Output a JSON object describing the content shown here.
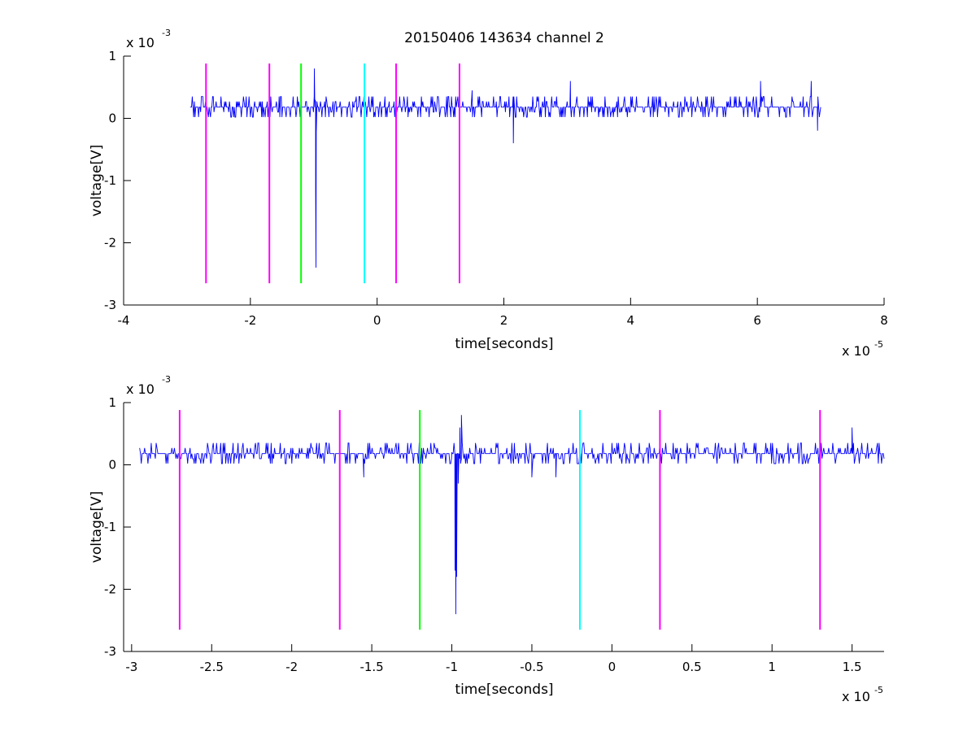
{
  "chart_data": [
    {
      "type": "line",
      "title": "20150406 143634 channel 2",
      "xlabel": "time[seconds]",
      "ylabel": "voltage[V]",
      "x_scale_label": "x 10",
      "x_scale_exponent": "-5",
      "y_scale_label": "x 10",
      "y_scale_exponent": "-3",
      "xlim": [
        -4,
        8
      ],
      "ylim": [
        -3,
        1
      ],
      "x_ticks": [
        -4,
        -2,
        0,
        2,
        4,
        6,
        8
      ],
      "x_tick_labels": [
        "-4",
        "-2",
        "0",
        "2",
        "4",
        "6",
        "8"
      ],
      "y_ticks": [
        -3,
        -2,
        -1,
        0,
        1
      ],
      "y_tick_labels": [
        "-3",
        "-2",
        "-1",
        "0",
        "1"
      ],
      "grid": false,
      "series": [
        {
          "color": "#0000ff",
          "x_start": -2.95,
          "x_end": 7.0,
          "baseline": 0.18,
          "noise_levels": [
            0.35,
            0.27,
            0.18,
            0.1,
            0.02
          ],
          "spikes": [
            {
              "x": -0.99,
              "y": 0.8
            },
            {
              "x": -0.98,
              "y": 0.3
            },
            {
              "x": -0.97,
              "y": -1.2
            },
            {
              "x": -0.965,
              "y": -2.4
            },
            {
              "x": -0.96,
              "y": -0.2
            },
            {
              "x": 1.5,
              "y": 0.45
            },
            {
              "x": 2.15,
              "y": -0.4
            },
            {
              "x": 3.05,
              "y": 0.6
            },
            {
              "x": 6.05,
              "y": 0.6
            },
            {
              "x": 6.85,
              "y": 0.6
            },
            {
              "x": 6.95,
              "y": -0.2
            }
          ]
        }
      ],
      "markers": [
        {
          "x": -2.7,
          "color": "#ff00ff"
        },
        {
          "x": -1.7,
          "color": "#ff00ff"
        },
        {
          "x": -1.2,
          "color": "#00ff00"
        },
        {
          "x": -0.2,
          "color": "#00ffff"
        },
        {
          "x": 0.3,
          "color": "#ff00ff"
        },
        {
          "x": 1.3,
          "color": "#ff00ff"
        }
      ],
      "marker_y_range": [
        -2.65,
        0.88
      ]
    },
    {
      "type": "line",
      "title": "",
      "xlabel": "time[seconds]",
      "ylabel": "voltage[V]",
      "x_scale_label": "x 10",
      "x_scale_exponent": "-5",
      "y_scale_label": "x 10",
      "y_scale_exponent": "-3",
      "xlim": [
        -3.05,
        1.7
      ],
      "ylim": [
        -3,
        1
      ],
      "x_ticks": [
        -3,
        -2.5,
        -2,
        -1.5,
        -1,
        -0.5,
        0,
        0.5,
        1,
        1.5
      ],
      "x_tick_labels": [
        "-3",
        "-2.5",
        "-2",
        "-1.5",
        "-1",
        "-0.5",
        "0",
        "0.5",
        "1",
        "1.5"
      ],
      "y_ticks": [
        -3,
        -2,
        -1,
        0,
        1
      ],
      "y_tick_labels": [
        "-3",
        "-2",
        "-1",
        "0",
        "1"
      ],
      "grid": false,
      "series": [
        {
          "color": "#0000ff",
          "x_start": -2.95,
          "x_end": 1.7,
          "baseline": 0.18,
          "noise_levels": [
            0.35,
            0.27,
            0.18,
            0.1,
            0.02
          ],
          "spikes": [
            {
              "x": -1.55,
              "y": -0.2
            },
            {
              "x": -1.0,
              "y": 0.2
            },
            {
              "x": -0.98,
              "y": -1.7
            },
            {
              "x": -0.975,
              "y": -2.4
            },
            {
              "x": -0.97,
              "y": -1.8
            },
            {
              "x": -0.96,
              "y": -0.3
            },
            {
              "x": -0.95,
              "y": 0.6
            },
            {
              "x": -0.94,
              "y": 0.8
            },
            {
              "x": -0.5,
              "y": -0.2
            },
            {
              "x": -0.35,
              "y": -0.2
            },
            {
              "x": 0.3,
              "y": -0.2
            },
            {
              "x": 1.5,
              "y": 0.6
            }
          ]
        }
      ],
      "markers": [
        {
          "x": -2.7,
          "color": "#ff00ff"
        },
        {
          "x": -1.7,
          "color": "#ff00ff"
        },
        {
          "x": -1.2,
          "color": "#00ff00"
        },
        {
          "x": -0.2,
          "color": "#00ffff"
        },
        {
          "x": 0.3,
          "color": "#ff00ff"
        },
        {
          "x": 1.3,
          "color": "#ff00ff"
        }
      ],
      "marker_y_range": [
        -2.65,
        0.88
      ]
    }
  ]
}
